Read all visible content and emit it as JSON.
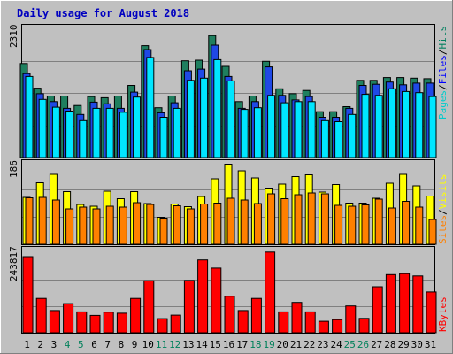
{
  "chart_data": [
    {
      "type": "bar",
      "panel": "top",
      "title": "Daily usage for August 2018",
      "ymax_label": "2310",
      "ylim": [
        0,
        2310
      ],
      "categories": [
        "1",
        "2",
        "3",
        "4",
        "5",
        "6",
        "7",
        "8",
        "9",
        "10",
        "11",
        "12",
        "13",
        "14",
        "15",
        "16",
        "17",
        "18",
        "19",
        "20",
        "21",
        "22",
        "23",
        "24",
        "25",
        "26",
        "27",
        "28",
        "29",
        "30",
        "31"
      ],
      "weekend_days": [
        "4",
        "5",
        "11",
        "12",
        "18",
        "19",
        "25",
        "26"
      ],
      "axis_label_parts": [
        "Pages",
        "Files",
        "Hits"
      ],
      "axis_label_separator": "/",
      "series": [
        {
          "name": "Hits",
          "color": "#1f7f5f",
          "values": [
            1680,
            1240,
            1100,
            1100,
            930,
            1090,
            1070,
            1100,
            1290,
            2000,
            890,
            1100,
            1730,
            1740,
            2180,
            1630,
            1000,
            1100,
            1720,
            1230,
            1140,
            1200,
            820,
            820,
            910,
            1380,
            1380,
            1430,
            1430,
            1420,
            1410
          ]
        },
        {
          "name": "Files",
          "color": "#1f49e6",
          "values": [
            1500,
            1140,
            1000,
            880,
            770,
            990,
            960,
            880,
            1170,
            1930,
            800,
            980,
            1550,
            1580,
            2010,
            1450,
            880,
            1000,
            1620,
            1110,
            1030,
            1090,
            720,
            720,
            880,
            1290,
            1310,
            1350,
            1300,
            1330,
            1330
          ]
        },
        {
          "name": "Pages",
          "color": "#00e6ff",
          "values": [
            1450,
            1040,
            900,
            830,
            660,
            880,
            880,
            810,
            1080,
            1790,
            720,
            880,
            1380,
            1420,
            1750,
            1370,
            860,
            890,
            1110,
            980,
            1000,
            1000,
            660,
            640,
            770,
            1130,
            1110,
            1230,
            1180,
            1160,
            1090
          ]
        }
      ]
    },
    {
      "type": "bar",
      "panel": "middle",
      "ymax_label": "186",
      "ylim": [
        0,
        186
      ],
      "categories": [
        "1",
        "2",
        "3",
        "4",
        "5",
        "6",
        "7",
        "8",
        "9",
        "10",
        "11",
        "12",
        "13",
        "14",
        "15",
        "16",
        "17",
        "18",
        "19",
        "20",
        "21",
        "22",
        "23",
        "24",
        "25",
        "26",
        "27",
        "28",
        "29",
        "30",
        "31"
      ],
      "axis_label_parts": [
        "Sites",
        "Visits"
      ],
      "axis_label_separator": "/",
      "series": [
        {
          "name": "Visits",
          "color": "#ffff00",
          "values": [
            106,
            139,
            158,
            119,
            90,
            86,
            120,
            103,
            119,
            92,
            61,
            91,
            85,
            108,
            148,
            181,
            166,
            150,
            127,
            136,
            153,
            157,
            118,
            135,
            93,
            93,
            104,
            138,
            158,
            132,
            109
          ]
        },
        {
          "name": "Sites",
          "color": "#ff8000",
          "values": [
            105,
            106,
            100,
            80,
            84,
            80,
            86,
            84,
            94,
            90,
            59,
            87,
            80,
            91,
            93,
            104,
            100,
            92,
            114,
            103,
            112,
            116,
            114,
            88,
            86,
            89,
            102,
            82,
            97,
            84,
            56
          ]
        }
      ]
    },
    {
      "type": "bar",
      "panel": "bottom",
      "ymax_label": "243817",
      "ylim": [
        0,
        243817
      ],
      "categories": [
        "1",
        "2",
        "3",
        "4",
        "5",
        "6",
        "7",
        "8",
        "9",
        "10",
        "11",
        "12",
        "13",
        "14",
        "15",
        "16",
        "17",
        "18",
        "19",
        "20",
        "21",
        "22",
        "23",
        "24",
        "25",
        "26",
        "27",
        "28",
        "29",
        "30",
        "31"
      ],
      "axis_label_parts": [
        "KBytes"
      ],
      "axis_label_separator": "",
      "series": [
        {
          "name": "KBytes",
          "color": "#ff0000",
          "values": [
            233000,
            105000,
            68000,
            89000,
            64000,
            53000,
            63000,
            60000,
            105000,
            159000,
            43000,
            54000,
            160000,
            223000,
            198000,
            112000,
            68000,
            105000,
            247000,
            64000,
            93000,
            64000,
            35000,
            40000,
            82000,
            44000,
            141000,
            178000,
            181000,
            174000,
            125000
          ]
        }
      ]
    }
  ],
  "colors": {
    "background": "#c0c0c0",
    "panel_border": "#000000",
    "bar_outline": "#000000",
    "grid": "#808080",
    "title": "#0000c0",
    "weekday_label": "#000000",
    "weekend_label": "#00805a",
    "hits_label": "#007f5f",
    "files_label": "#0000ff",
    "pages_label": "#00cccc",
    "sites_label": "#ff8000",
    "visits_label": "#ffff00",
    "kbytes_label": "#ff0000"
  }
}
